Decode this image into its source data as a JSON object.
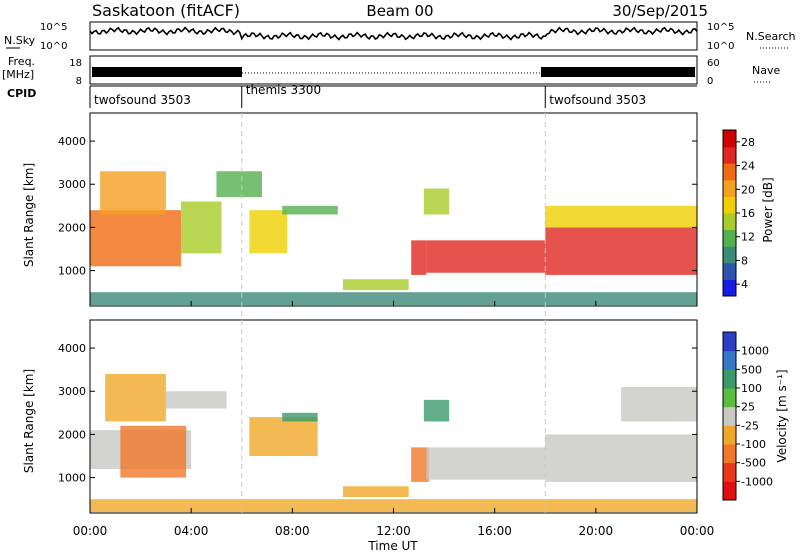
{
  "header": {
    "station": "Saskatoon (fitACF)",
    "beam": "Beam 00",
    "date": "30/Sep/2015"
  },
  "noise_panel": {
    "left_label": "N.Sky",
    "right_label": "N.Search",
    "ytick_top": "10^5",
    "ytick_bottom": "10^0"
  },
  "freq_panel": {
    "left_label_line1": "Freq.",
    "left_label_line2": "[MHz]",
    "right_label": "Nave",
    "ytick_left_top": "18",
    "ytick_left_bottom": "8",
    "ytick_right_top": "60",
    "ytick_right_bottom": "0"
  },
  "cpid": {
    "label": "CPID",
    "segments": [
      {
        "name": "twofsound 3503",
        "start_hour": 0,
        "end_hour": 6
      },
      {
        "name": "themis 3300",
        "start_hour": 6,
        "end_hour": 18
      },
      {
        "name": "twofsound 3503",
        "start_hour": 18,
        "end_hour": 24
      }
    ]
  },
  "axes": {
    "xlabel": "Time UT",
    "xticks": [
      "00:00",
      "04:00",
      "08:00",
      "12:00",
      "16:00",
      "20:00",
      "00:00"
    ],
    "ylabel": "Slant Range [km]",
    "yticks": [
      "1000",
      "2000",
      "3000",
      "4000"
    ]
  },
  "power_colorbar": {
    "label": "Power [dB]",
    "ticks": [
      "4",
      "8",
      "12",
      "16",
      "20",
      "24",
      "28"
    ],
    "colors": [
      "#1a1ae6",
      "#2d55b0",
      "#3c8a78",
      "#55b050",
      "#a8cc28",
      "#f0d000",
      "#f4a020",
      "#f06a14",
      "#e02820",
      "#d00000"
    ]
  },
  "velocity_colorbar": {
    "label": "Velocity [m s⁻¹]",
    "ticks": [
      "1000",
      "500",
      "100",
      "25",
      "-25",
      "-100",
      "-500",
      "-1000"
    ],
    "colors": [
      "#2c3ec8",
      "#3878c8",
      "#3a9a6a",
      "#5cbc3c",
      "#c8c8c4",
      "#f0a828",
      "#f07828",
      "#e83818",
      "#e01010"
    ]
  },
  "chart_data": {
    "type": "heatmap",
    "xlabel": "Time UT",
    "ylabel": "Slant Range [km]",
    "xlim_hours": [
      0,
      24
    ],
    "ylim_km": [
      180,
      4650
    ],
    "panels": [
      {
        "name": "Power",
        "units": "dB",
        "scale": [
          0,
          30
        ],
        "regions": [
          {
            "t0": 0.0,
            "t1": 3.6,
            "r0": 1100,
            "r1": 2400,
            "value": 22
          },
          {
            "t0": 0.4,
            "t1": 3.0,
            "r0": 2300,
            "r1": 3300,
            "value": 18
          },
          {
            "t0": 3.6,
            "t1": 5.2,
            "r0": 1400,
            "r1": 2600,
            "value": 12
          },
          {
            "t0": 5.0,
            "t1": 6.8,
            "r0": 2700,
            "r1": 3300,
            "value": 9
          },
          {
            "t0": 6.3,
            "t1": 7.8,
            "r0": 1400,
            "r1": 2400,
            "value": 16
          },
          {
            "t0": 7.6,
            "t1": 9.8,
            "r0": 2300,
            "r1": 2500,
            "value": 11
          },
          {
            "t0": 10.0,
            "t1": 12.6,
            "r0": 550,
            "r1": 800,
            "value": 14
          },
          {
            "t0": 12.7,
            "t1": 13.3,
            "r0": 900,
            "r1": 1700,
            "value": 24
          },
          {
            "t0": 13.3,
            "t1": 18.0,
            "r0": 950,
            "r1": 1700,
            "value": 25
          },
          {
            "t0": 13.2,
            "t1": 14.2,
            "r0": 2300,
            "r1": 2900,
            "value": 14
          },
          {
            "t0": 18.0,
            "t1": 24.0,
            "r0": 900,
            "r1": 2000,
            "value": 24
          },
          {
            "t0": 18.0,
            "t1": 24.0,
            "r0": 2000,
            "r1": 2500,
            "value": 16
          },
          {
            "t0": 0.0,
            "t1": 24.0,
            "r0": 200,
            "r1": 500,
            "value": 8
          }
        ]
      },
      {
        "name": "Velocity",
        "units": "m/s",
        "scale": [
          -1000,
          1000
        ],
        "regions": [
          {
            "t0": 0.0,
            "t1": 4.0,
            "r0": 1200,
            "r1": 2100,
            "value": 0
          },
          {
            "t0": 1.2,
            "t1": 3.8,
            "r0": 1000,
            "r1": 2200,
            "value": -150
          },
          {
            "t0": 0.6,
            "t1": 3.0,
            "r0": 2300,
            "r1": 3400,
            "value": -80
          },
          {
            "t0": 3.0,
            "t1": 5.4,
            "r0": 2600,
            "r1": 3000,
            "value": 0
          },
          {
            "t0": 6.3,
            "t1": 9.0,
            "r0": 1500,
            "r1": 2400,
            "value": -100
          },
          {
            "t0": 7.6,
            "t1": 9.0,
            "r0": 2300,
            "r1": 2500,
            "value": 40
          },
          {
            "t0": 10.0,
            "t1": 12.6,
            "r0": 550,
            "r1": 800,
            "value": -80
          },
          {
            "t0": 12.7,
            "t1": 13.4,
            "r0": 900,
            "r1": 1700,
            "value": -150
          },
          {
            "t0": 13.3,
            "t1": 18.0,
            "r0": 950,
            "r1": 1700,
            "value": 0
          },
          {
            "t0": 13.2,
            "t1": 14.2,
            "r0": 2300,
            "r1": 2800,
            "value": 60
          },
          {
            "t0": 18.0,
            "t1": 24.0,
            "r0": 900,
            "r1": 2000,
            "value": 0
          },
          {
            "t0": 21.0,
            "t1": 24.0,
            "r0": 2300,
            "r1": 3100,
            "value": 0
          },
          {
            "t0": 0.0,
            "t1": 24.0,
            "r0": 200,
            "r1": 500,
            "value": -60
          }
        ]
      }
    ]
  }
}
